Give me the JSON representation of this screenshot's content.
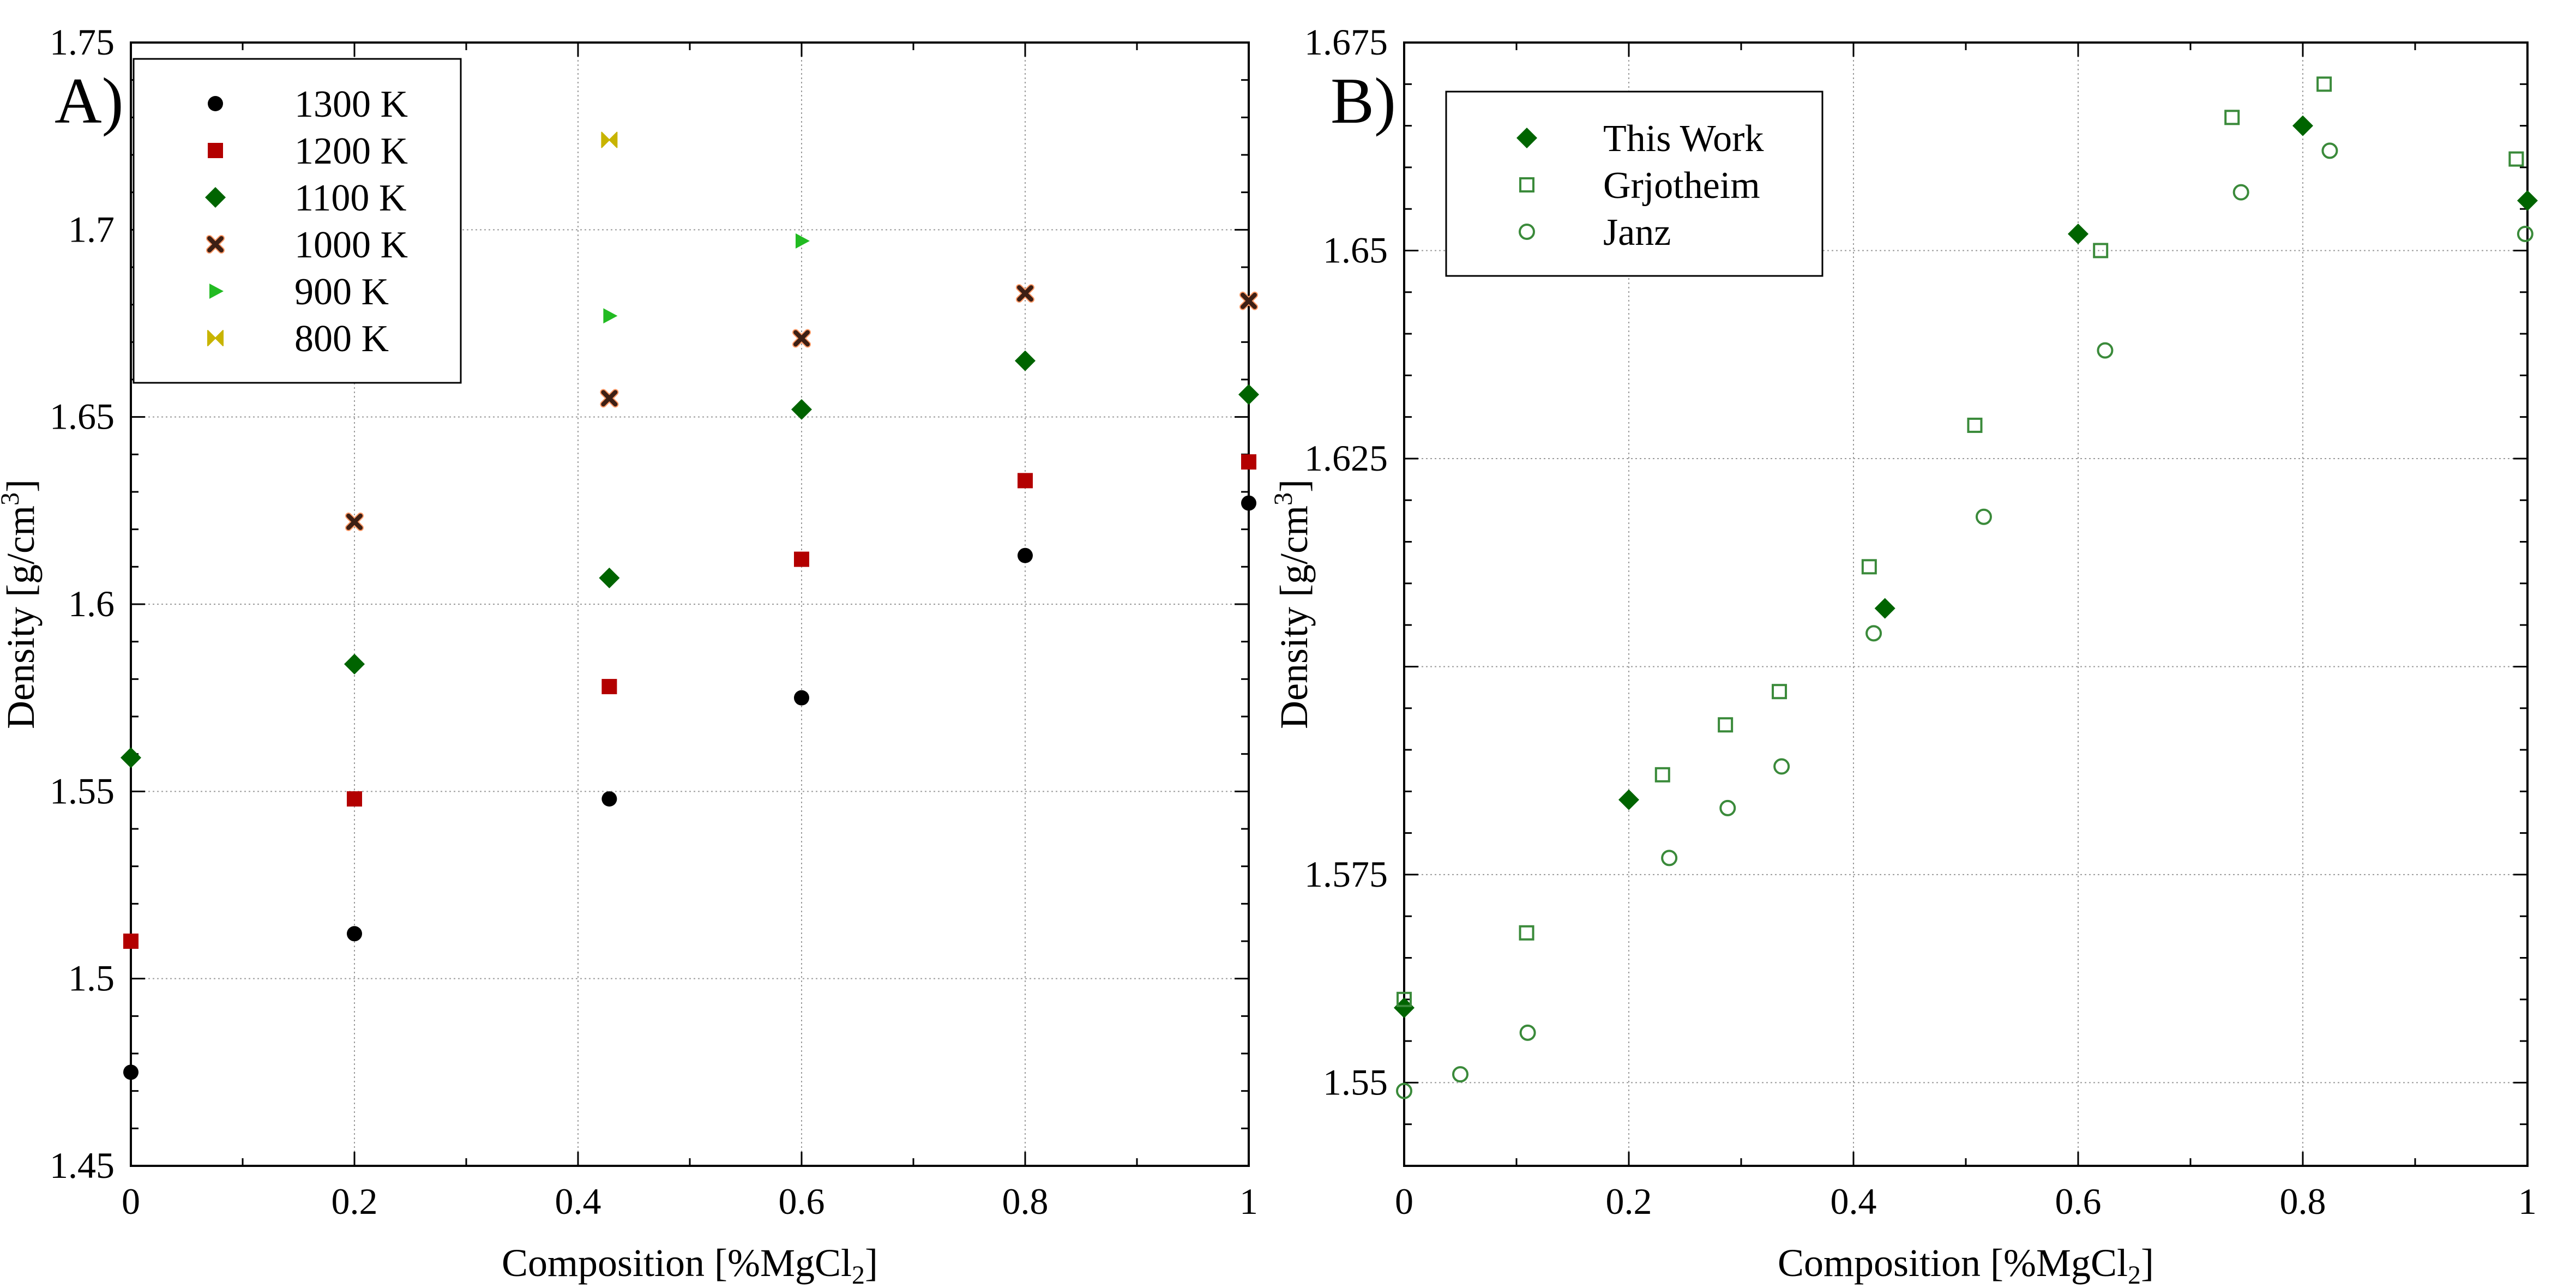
{
  "chart_data": [
    {
      "panel_label": "A)",
      "type": "scatter",
      "xlabel": "Composition [%MgCl",
      "xlabel_sub": "2",
      "xlabel_end": "]",
      "ylabel": "Density [g/cm",
      "ylabel_sup": "3",
      "ylabel_end": "]",
      "xlim": [
        0,
        1
      ],
      "ylim": [
        1.45,
        1.75
      ],
      "xticks": [
        0,
        0.2,
        0.4,
        0.6,
        0.8,
        1
      ],
      "xtick_labels": [
        "0",
        "0.2",
        "0.4",
        "0.6",
        "0.8",
        "1"
      ],
      "yticks": [
        1.45,
        1.5,
        1.55,
        1.6,
        1.65,
        1.7,
        1.75
      ],
      "ytick_labels": [
        "1.45",
        "1.5",
        "1.55",
        "1.6",
        "1.65",
        "1.7",
        "1.75"
      ],
      "grid": true,
      "legend_position": "top-left",
      "series": [
        {
          "name": "1300 K",
          "marker": "circle",
          "color": "#000000",
          "fill": true,
          "points": [
            [
              0,
              1.475
            ],
            [
              0.2,
              1.512
            ],
            [
              0.428,
              1.548
            ],
            [
              0.6,
              1.575
            ],
            [
              0.8,
              1.613
            ],
            [
              1.0,
              1.627
            ]
          ]
        },
        {
          "name": "1200 K",
          "marker": "square",
          "color": "#b30000",
          "fill": true,
          "points": [
            [
              0,
              1.51
            ],
            [
              0.2,
              1.548
            ],
            [
              0.428,
              1.578
            ],
            [
              0.6,
              1.612
            ],
            [
              0.8,
              1.633
            ],
            [
              1.0,
              1.638
            ]
          ]
        },
        {
          "name": "1100 K",
          "marker": "diamond",
          "color": "#006400",
          "fill": true,
          "points": [
            [
              0,
              1.559
            ],
            [
              0.2,
              1.584
            ],
            [
              0.428,
              1.607
            ],
            [
              0.6,
              1.652
            ],
            [
              0.8,
              1.665
            ],
            [
              1.0,
              1.656
            ]
          ]
        },
        {
          "name": "1000 K",
          "marker": "x",
          "color": "#3d1f14",
          "fill": true,
          "points": [
            [
              0.2,
              1.622
            ],
            [
              0.428,
              1.655
            ],
            [
              0.6,
              1.671
            ],
            [
              0.8,
              1.683
            ],
            [
              1.0,
              1.681
            ]
          ]
        },
        {
          "name": "900 K",
          "marker": "triangle-right",
          "color": "#22bb22",
          "fill": true,
          "points": [
            [
              0.428,
              1.677
            ],
            [
              0.6,
              1.697
            ]
          ]
        },
        {
          "name": "800 K",
          "marker": "bowtie",
          "color": "#c8b400",
          "fill": true,
          "points": [
            [
              0.428,
              1.724
            ]
          ]
        }
      ]
    },
    {
      "panel_label": "B)",
      "type": "scatter",
      "xlabel": "Composition [%MgCl",
      "xlabel_sub": "2",
      "xlabel_end": "]",
      "ylabel": "Density [g/cm",
      "ylabel_sup": "3",
      "ylabel_end": "]",
      "xlim": [
        0,
        1
      ],
      "ylim": [
        1.54,
        1.675
      ],
      "xticks": [
        0,
        0.2,
        0.4,
        0.6,
        0.8,
        1
      ],
      "xtick_labels": [
        "0",
        "0.2",
        "0.4",
        "0.6",
        "0.8",
        "1"
      ],
      "yticks": [
        1.55,
        1.575,
        1.6,
        1.625,
        1.65,
        1.675
      ],
      "ytick_labels": [
        "1.55",
        "1.575",
        "",
        "1.625",
        "1.65",
        "1.675"
      ],
      "grid": true,
      "legend_position": "top-left",
      "series": [
        {
          "name": "This Work",
          "marker": "diamond",
          "color": "#006400",
          "fill": true,
          "points": [
            [
              0,
              1.559
            ],
            [
              0.2,
              1.584
            ],
            [
              0.428,
              1.607
            ],
            [
              0.6,
              1.652
            ],
            [
              0.8,
              1.665
            ],
            [
              1.0,
              1.656
            ]
          ]
        },
        {
          "name": "Grjotheim",
          "marker": "square",
          "color": "#3a8a3a",
          "fill": false,
          "points": [
            [
              0,
              1.56
            ],
            [
              0.109,
              1.568
            ],
            [
              0.23,
              1.587
            ],
            [
              0.286,
              1.593
            ],
            [
              0.334,
              1.597
            ],
            [
              0.414,
              1.612
            ],
            [
              0.508,
              1.629
            ],
            [
              0.62,
              1.65
            ],
            [
              0.737,
              1.666
            ],
            [
              0.819,
              1.67
            ],
            [
              0.99,
              1.661
            ]
          ]
        },
        {
          "name": "Janz",
          "marker": "circle",
          "color": "#3a8a3a",
          "fill": false,
          "points": [
            [
              0,
              1.549
            ],
            [
              0.05,
              1.551
            ],
            [
              0.11,
              1.556
            ],
            [
              0.236,
              1.577
            ],
            [
              0.288,
              1.583
            ],
            [
              0.336,
              1.588
            ],
            [
              0.418,
              1.604
            ],
            [
              0.516,
              1.618
            ],
            [
              0.624,
              1.638
            ],
            [
              0.745,
              1.657
            ],
            [
              0.824,
              1.662
            ],
            [
              0.998,
              1.652
            ]
          ]
        }
      ]
    }
  ]
}
